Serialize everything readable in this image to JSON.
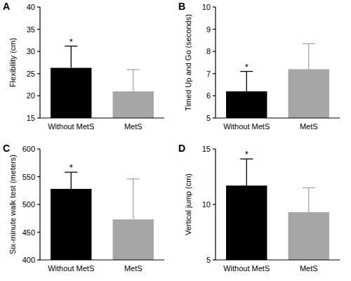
{
  "chart_data": [
    {
      "type": "bar",
      "title": "A",
      "y_label": "Flexibility (cm)",
      "categories": [
        "Without MetS",
        "MetS"
      ],
      "values": [
        26.3,
        21.0
      ],
      "error": [
        4.9,
        4.9
      ],
      "colors": [
        "#000000",
        "#a6a6a6"
      ],
      "ylim": [
        15,
        40
      ],
      "yticks": [
        15,
        20,
        25,
        30,
        35,
        40
      ],
      "annotations": [
        {
          "text": "*",
          "category": "Without MetS"
        }
      ]
    },
    {
      "type": "bar",
      "title": "B",
      "y_label": "Timed Up and Go (seconds)",
      "categories": [
        "Without MetS",
        "MetS"
      ],
      "values": [
        6.2,
        7.2
      ],
      "error": [
        0.9,
        1.15
      ],
      "colors": [
        "#000000",
        "#a6a6a6"
      ],
      "ylim": [
        5,
        10
      ],
      "yticks": [
        5,
        6,
        7,
        8,
        9,
        10
      ],
      "annotations": [
        {
          "text": "*",
          "category": "Without MetS"
        }
      ]
    },
    {
      "type": "bar",
      "title": "C",
      "y_label": "Six-minute walk test (meters)",
      "categories": [
        "Without MetS",
        "MetS"
      ],
      "values": [
        528,
        473
      ],
      "error": [
        30,
        73
      ],
      "colors": [
        "#000000",
        "#a6a6a6"
      ],
      "ylim": [
        400,
        600
      ],
      "yticks": [
        400,
        450,
        500,
        550,
        600
      ],
      "annotations": [
        {
          "text": "*",
          "category": "Without MetS"
        }
      ]
    },
    {
      "type": "bar",
      "title": "D",
      "y_label": "Vertical jump (cm)",
      "categories": [
        "Without MetS",
        "MetS"
      ],
      "values": [
        11.7,
        9.3
      ],
      "error": [
        2.4,
        2.2
      ],
      "colors": [
        "#000000",
        "#a6a6a6"
      ],
      "ylim": [
        5,
        15
      ],
      "yticks": [
        5,
        10,
        15
      ],
      "annotations": [
        {
          "text": "*",
          "category": "Without MetS"
        }
      ]
    }
  ]
}
